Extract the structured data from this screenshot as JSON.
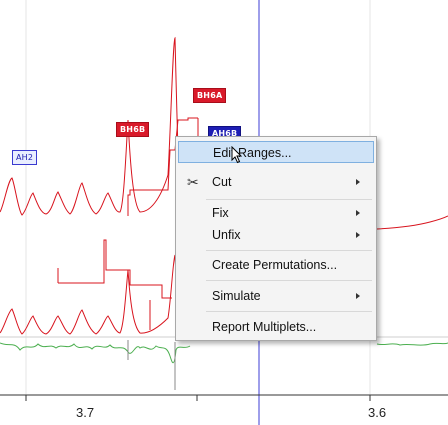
{
  "peak_tags": [
    {
      "text": "BH6A",
      "style": "red"
    },
    {
      "text": "BH6B",
      "style": "red"
    },
    {
      "text": "AH6B",
      "style": "blue"
    },
    {
      "text": "AH2",
      "style": "outline"
    }
  ],
  "axis": {
    "ticks": [
      "3.7",
      "3.6"
    ]
  },
  "context_menu": {
    "items": [
      {
        "label": "Edit Ranges...",
        "has_submenu": false,
        "highlighted": true,
        "icon": ""
      },
      {
        "label": "Cut",
        "has_submenu": true,
        "highlighted": false,
        "icon": "scissors-icon"
      },
      {
        "label": "Fix",
        "has_submenu": true,
        "highlighted": false,
        "icon": ""
      },
      {
        "label": "Unfix",
        "has_submenu": true,
        "highlighted": false,
        "icon": ""
      },
      {
        "label": "Create Permutations...",
        "has_submenu": false,
        "highlighted": false,
        "icon": ""
      },
      {
        "label": "Simulate",
        "has_submenu": true,
        "highlighted": false,
        "icon": ""
      },
      {
        "label": "Report Multiplets...",
        "has_submenu": false,
        "highlighted": false,
        "icon": ""
      }
    ]
  },
  "colors": {
    "spectrum_red": "#d8141e",
    "residual_green": "#4caf50",
    "cursor_blue": "#3c3cd4",
    "highlight": "#cfe3f7"
  }
}
